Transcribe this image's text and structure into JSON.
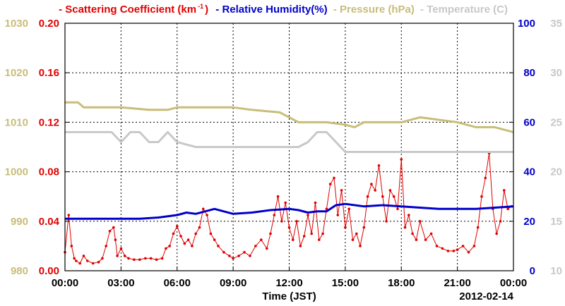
{
  "legend": {
    "scattering_prefix": "- Scattering Coefficient (km",
    "scattering_sup": "-1",
    "scattering_suffix": ")",
    "humidity": "- Relative Humidity(%)",
    "pressure": "- Pressure (hPa)",
    "temperature": "- Temperature (C)"
  },
  "chart_data": {
    "type": "line",
    "xlabel": "Time (JST)",
    "date_label": "2012-02-14",
    "x_ticks": [
      "00:00",
      "03:00",
      "06:00",
      "09:00",
      "12:00",
      "15:00",
      "18:00",
      "21:00",
      "00:00"
    ],
    "x_range_hours": [
      0,
      24
    ],
    "axes": {
      "pressure": {
        "ticks": [
          "980",
          "990",
          "1000",
          "1010",
          "1020",
          "1030"
        ],
        "range": [
          980,
          1030
        ],
        "color": "#c8bd78"
      },
      "scattering": {
        "ticks": [
          "0.00",
          "0.04",
          "0.08",
          "0.12",
          "0.16",
          "0.20"
        ],
        "range": [
          0,
          0.2
        ],
        "color": "#e00000"
      },
      "humidity": {
        "ticks": [
          "0",
          "20",
          "40",
          "60",
          "80",
          "100"
        ],
        "range": [
          0,
          100
        ],
        "color": "#0000cc"
      },
      "temperature": {
        "ticks": [
          "10",
          "15",
          "20",
          "25",
          "30",
          "35"
        ],
        "range": [
          10,
          35
        ],
        "color": "#c8c8c8"
      }
    },
    "grid": true,
    "series": [
      {
        "name": "Scattering Coefficient (km-1)",
        "axis": "scattering",
        "color": "#e00000",
        "markers": true,
        "x": [
          0,
          0.2,
          0.35,
          0.5,
          0.6,
          0.8,
          1.0,
          1.2,
          1.5,
          1.8,
          2.0,
          2.2,
          2.4,
          2.6,
          2.7,
          2.8,
          3.0,
          3.2,
          3.4,
          3.7,
          4.0,
          4.3,
          4.6,
          4.9,
          5.2,
          5.4,
          5.6,
          5.8,
          6.0,
          6.2,
          6.4,
          6.6,
          6.8,
          7.0,
          7.2,
          7.4,
          7.6,
          7.8,
          8.0,
          8.2,
          8.5,
          8.8,
          9.0,
          9.3,
          9.6,
          9.9,
          10.2,
          10.5,
          10.8,
          11.0,
          11.2,
          11.4,
          11.6,
          11.8,
          12.0,
          12.2,
          12.4,
          12.6,
          12.8,
          13.0,
          13.2,
          13.4,
          13.6,
          13.8,
          14.0,
          14.2,
          14.4,
          14.6,
          14.8,
          15.0,
          15.2,
          15.4,
          15.6,
          15.8,
          16.0,
          16.2,
          16.4,
          16.6,
          16.8,
          17.0,
          17.2,
          17.4,
          17.6,
          17.8,
          18.0,
          18.2,
          18.4,
          18.6,
          18.8,
          19.0,
          19.3,
          19.6,
          19.9,
          20.2,
          20.5,
          20.8,
          21.0,
          21.3,
          21.6,
          21.9,
          22.1,
          22.3,
          22.5,
          22.7,
          22.9,
          23.1,
          23.3,
          23.5,
          23.7,
          23.9
        ],
        "values": [
          0.015,
          0.045,
          0.02,
          0.01,
          0.008,
          0.006,
          0.012,
          0.008,
          0.006,
          0.007,
          0.01,
          0.02,
          0.032,
          0.035,
          0.025,
          0.012,
          0.018,
          0.012,
          0.01,
          0.009,
          0.009,
          0.01,
          0.01,
          0.009,
          0.01,
          0.018,
          0.02,
          0.03,
          0.036,
          0.028,
          0.022,
          0.025,
          0.02,
          0.03,
          0.035,
          0.05,
          0.045,
          0.03,
          0.025,
          0.02,
          0.015,
          0.012,
          0.01,
          0.012,
          0.015,
          0.012,
          0.02,
          0.025,
          0.018,
          0.03,
          0.045,
          0.06,
          0.04,
          0.055,
          0.035,
          0.025,
          0.04,
          0.02,
          0.028,
          0.045,
          0.03,
          0.055,
          0.025,
          0.03,
          0.05,
          0.07,
          0.075,
          0.045,
          0.065,
          0.035,
          0.05,
          0.025,
          0.03,
          0.02,
          0.035,
          0.06,
          0.07,
          0.065,
          0.085,
          0.06,
          0.04,
          0.065,
          0.06,
          0.05,
          0.09,
          0.035,
          0.045,
          0.03,
          0.025,
          0.04,
          0.025,
          0.03,
          0.02,
          0.018,
          0.016,
          0.016,
          0.017,
          0.02,
          0.015,
          0.02,
          0.035,
          0.06,
          0.075,
          0.095,
          0.05,
          0.03,
          0.04,
          0.065,
          0.05,
          0.052
        ]
      },
      {
        "name": "Relative Humidity(%)",
        "axis": "humidity",
        "color": "#0000cc",
        "markers": false,
        "x": [
          0,
          2,
          4,
          5,
          6,
          6.5,
          7,
          7.5,
          8,
          8.5,
          9,
          10,
          11,
          12,
          12.5,
          13,
          13.5,
          14,
          14.5,
          15,
          16,
          17,
          18,
          19,
          20,
          21,
          22,
          23,
          24
        ],
        "values": [
          21,
          21,
          21,
          21.5,
          22.5,
          23.5,
          23,
          24,
          25,
          24,
          23,
          23.5,
          24.5,
          25,
          24.5,
          23.5,
          24,
          24,
          26.5,
          27,
          26,
          26.5,
          26,
          25.5,
          25,
          25,
          25,
          25.5,
          26
        ]
      },
      {
        "name": "Pressure (hPa)",
        "axis": "pressure",
        "color": "#c8bd78",
        "markers": false,
        "x": [
          0,
          0.7,
          1.0,
          2.5,
          3.0,
          4.5,
          5.0,
          5.5,
          6.0,
          9.0,
          10.0,
          11.5,
          12.0,
          12.5,
          13.0,
          13.5,
          14.0,
          15.0,
          15.5,
          16.0,
          17.0,
          18.0,
          19.0,
          20.0,
          21.0,
          22.0,
          23.0,
          23.5,
          24.0
        ],
        "values": [
          1014,
          1014,
          1013,
          1013,
          1013,
          1012.5,
          1012.5,
          1012.5,
          1013,
          1013,
          1012.5,
          1012,
          1011,
          1010,
          1010,
          1010,
          1010,
          1009.5,
          1009,
          1010,
          1010,
          1010,
          1011,
          1010.5,
          1010,
          1009,
          1009,
          1008.5,
          1008
        ]
      },
      {
        "name": "Temperature (C)",
        "axis": "temperature",
        "color": "#c8c8c8",
        "markers": false,
        "x": [
          0,
          1.0,
          1.5,
          2.0,
          2.5,
          3.0,
          3.5,
          4.0,
          4.5,
          5.0,
          5.5,
          6.0,
          7.0,
          8.0,
          9.0,
          10.0,
          11.0,
          12.0,
          12.5,
          13.0,
          13.5,
          14.0,
          15.0,
          16.0,
          17.0,
          18.0,
          19.0,
          20.0,
          21.0,
          22.0,
          23.0,
          24.0
        ],
        "values": [
          24,
          24,
          24,
          24,
          24,
          23,
          24,
          24,
          23,
          23,
          24,
          23,
          22.5,
          22.5,
          22.5,
          22.5,
          22.5,
          22.5,
          22.5,
          23,
          24,
          24,
          22,
          22,
          22,
          22,
          22,
          22,
          22,
          22,
          22,
          22
        ]
      }
    ]
  }
}
